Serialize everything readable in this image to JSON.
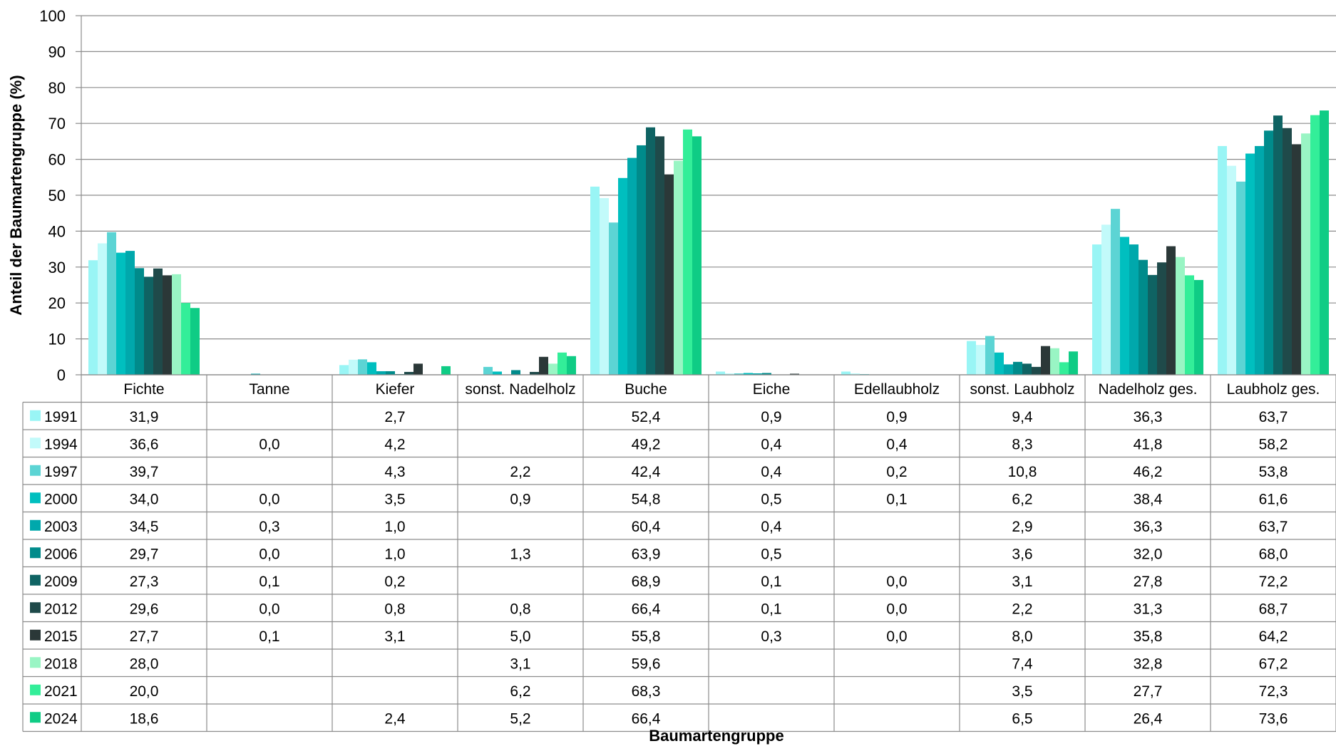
{
  "chart_data": {
    "type": "bar",
    "title": "",
    "xlabel": "Baumartengruppe",
    "ylabel": "Anteil der Baumartengruppe (%)",
    "ylim": [
      0,
      100
    ],
    "yticks": [
      "0",
      "10",
      "20",
      "30",
      "40",
      "50",
      "60",
      "70",
      "80",
      "90",
      "100"
    ],
    "grid": true,
    "legend": "data table rows (left)",
    "categories": [
      "Fichte",
      "Tanne",
      "Kiefer",
      "sonst. Nadelholz",
      "Buche",
      "Eiche",
      "Edellaubholz",
      "sonst. Laubholz",
      "Nadelholz ges.",
      "Laubholz ges."
    ],
    "series": [
      {
        "name": "1991",
        "color": "#99F5F5",
        "values": [
          31.9,
          null,
          2.7,
          null,
          52.4,
          0.9,
          0.9,
          9.4,
          36.3,
          63.7
        ],
        "labels": [
          "31,9",
          "",
          "2,7",
          "",
          "52,4",
          "0,9",
          "0,9",
          "9,4",
          "36,3",
          "63,7"
        ]
      },
      {
        "name": "1994",
        "color": "#C2FAFA",
        "values": [
          36.6,
          0.0,
          4.2,
          null,
          49.2,
          0.4,
          0.4,
          8.3,
          41.8,
          58.2
        ],
        "labels": [
          "36,6",
          "0,0",
          "4,2",
          "",
          "49,2",
          "0,4",
          "0,4",
          "8,3",
          "41,8",
          "58,2"
        ]
      },
      {
        "name": "1997",
        "color": "#5CD4D4",
        "values": [
          39.7,
          null,
          4.3,
          2.2,
          42.4,
          0.4,
          0.2,
          10.8,
          46.2,
          53.8
        ],
        "labels": [
          "39,7",
          "",
          "4,3",
          "2,2",
          "42,4",
          "0,4",
          "0,2",
          "10,8",
          "46,2",
          "53,8"
        ]
      },
      {
        "name": "2000",
        "color": "#00BFBF",
        "values": [
          34.0,
          0.0,
          3.5,
          0.9,
          54.8,
          0.5,
          0.1,
          6.2,
          38.4,
          61.6
        ],
        "labels": [
          "34,0",
          "0,0",
          "3,5",
          "0,9",
          "54,8",
          "0,5",
          "0,1",
          "6,2",
          "38,4",
          "61,6"
        ]
      },
      {
        "name": "2003",
        "color": "#00A8AC",
        "values": [
          34.5,
          0.3,
          1.0,
          null,
          60.4,
          0.4,
          null,
          2.9,
          36.3,
          63.7
        ],
        "labels": [
          "34,5",
          "0,3",
          "1,0",
          "",
          "60,4",
          "0,4",
          "",
          "2,9",
          "36,3",
          "63,7"
        ]
      },
      {
        "name": "2006",
        "color": "#008B8B",
        "values": [
          29.7,
          0.0,
          1.0,
          1.3,
          63.9,
          0.5,
          null,
          3.6,
          32.0,
          68.0
        ],
        "labels": [
          "29,7",
          "0,0",
          "1,0",
          "1,3",
          "63,9",
          "0,5",
          "",
          "3,6",
          "32,0",
          "68,0"
        ]
      },
      {
        "name": "2009",
        "color": "#0F6363",
        "values": [
          27.3,
          0.1,
          0.2,
          null,
          68.9,
          0.1,
          0.0,
          3.1,
          27.8,
          72.2
        ],
        "labels": [
          "27,3",
          "0,1",
          "0,2",
          "",
          "68,9",
          "0,1",
          "0,0",
          "3,1",
          "27,8",
          "72,2"
        ]
      },
      {
        "name": "2012",
        "color": "#1F4A4A",
        "values": [
          29.6,
          0.0,
          0.8,
          0.8,
          66.4,
          0.1,
          0.0,
          2.2,
          31.3,
          68.7
        ],
        "labels": [
          "29,6",
          "0,0",
          "0,8",
          "0,8",
          "66,4",
          "0,1",
          "0,0",
          "2,2",
          "31,3",
          "68,7"
        ]
      },
      {
        "name": "2015",
        "color": "#2B3838",
        "values": [
          27.7,
          0.1,
          3.1,
          5.0,
          55.8,
          0.3,
          0.0,
          8.0,
          35.8,
          64.2
        ],
        "labels": [
          "27,7",
          "0,1",
          "3,1",
          "5,0",
          "55,8",
          "0,3",
          "0,0",
          "8,0",
          "35,8",
          "64,2"
        ]
      },
      {
        "name": "2018",
        "color": "#99F5C4",
        "values": [
          28.0,
          null,
          null,
          3.1,
          59.6,
          null,
          null,
          7.4,
          32.8,
          67.2
        ],
        "labels": [
          "28,0",
          "",
          "",
          "3,1",
          "59,6",
          "",
          "",
          "7,4",
          "32,8",
          "67,2"
        ]
      },
      {
        "name": "2021",
        "color": "#33EE99",
        "values": [
          20.0,
          null,
          null,
          6.2,
          68.3,
          null,
          null,
          3.5,
          27.7,
          72.3
        ],
        "labels": [
          "20,0",
          "",
          "",
          "6,2",
          "68,3",
          "",
          "",
          "3,5",
          "27,7",
          "72,3"
        ]
      },
      {
        "name": "2024",
        "color": "#0FCC85",
        "values": [
          18.6,
          null,
          2.4,
          5.2,
          66.4,
          null,
          null,
          6.5,
          26.4,
          73.6
        ],
        "labels": [
          "18,6",
          "",
          "2,4",
          "5,2",
          "66,4",
          "",
          "",
          "6,5",
          "26,4",
          "73,6"
        ]
      }
    ]
  }
}
